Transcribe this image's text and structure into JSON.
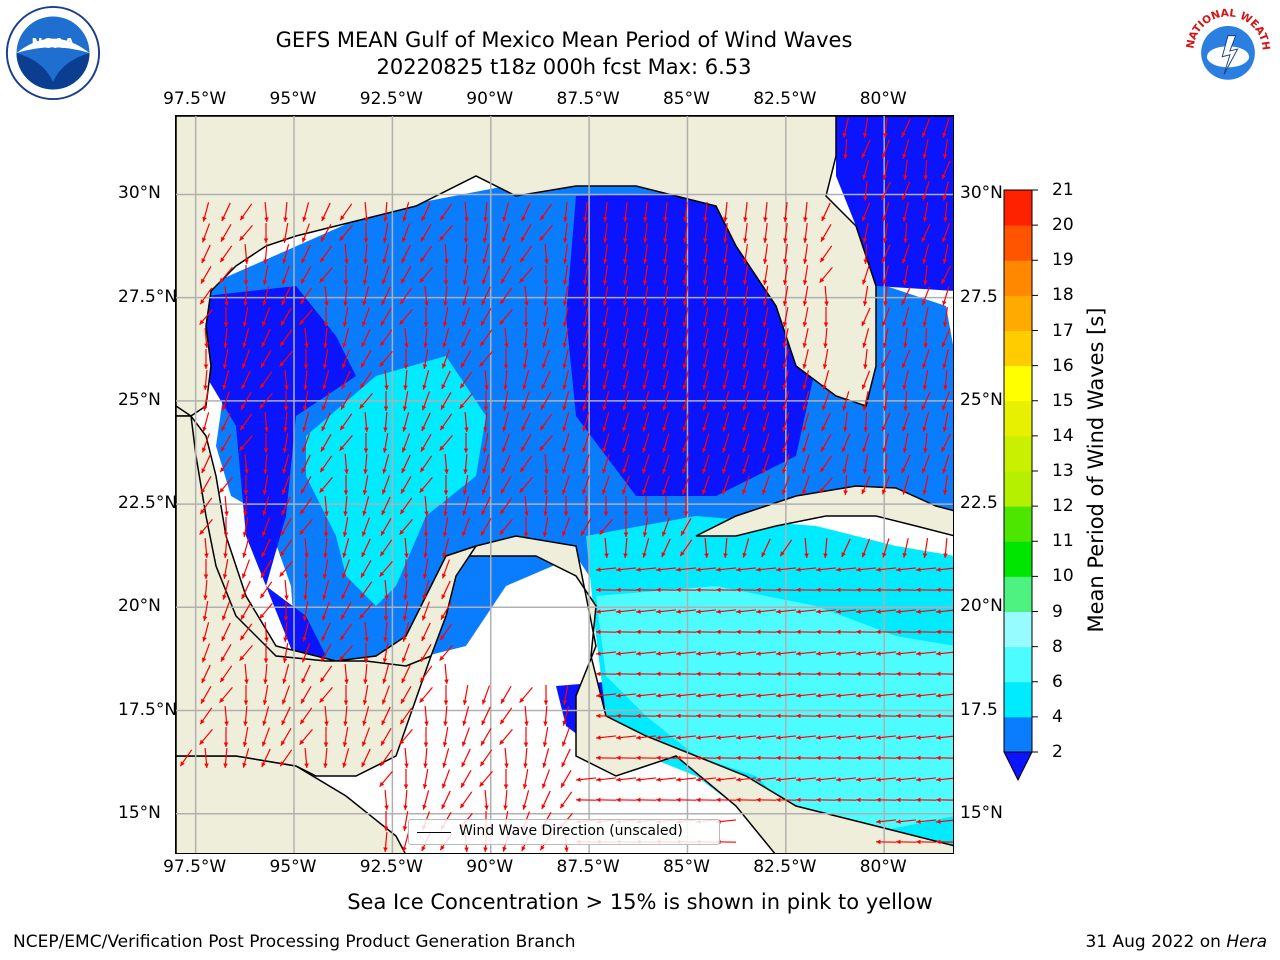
{
  "title_line1": "GEFS MEAN Gulf of Mexico Mean Period of Wind Waves",
  "title_line2": "20220825 t18z 000h fcst   Max: 6.53",
  "logos": {
    "left": "noaa-logo",
    "left_text": "NOAA",
    "right": "nws-logo",
    "right_text": "NATIONAL WEATHER SERVICE"
  },
  "map": {
    "lon_ticks": [
      "97.5°W",
      "95°W",
      "92.5°W",
      "90°W",
      "87.5°W",
      "85°W",
      "82.5°W",
      "80°W"
    ],
    "lon_values": [
      -97.5,
      -95,
      -92.5,
      -90,
      -87.5,
      -85,
      -82.5,
      -80
    ],
    "lat_ticks": [
      "30°N",
      "27.5°N",
      "25°N",
      "22.5°N",
      "20°N",
      "17.5°N",
      "15°N"
    ],
    "lat_ticks_right": [
      "30°N",
      "27.5",
      "25°N",
      "22.5",
      "20°N",
      "17.5",
      "15°N"
    ],
    "lat_values": [
      30,
      27.5,
      25,
      22.5,
      20,
      17.5,
      15
    ],
    "lon_range": [
      -98,
      -78.2
    ],
    "lat_range": [
      14,
      31.9
    ],
    "grid": true,
    "colors": {
      "land": "#eeeedb",
      "coast": "#000000",
      "grid": "#b0b0b0",
      "arrow": "#ff0000",
      "no_data": "#ffffff"
    }
  },
  "legend": {
    "label": "Wind Wave Direction (unscaled)",
    "placement": "lower-center"
  },
  "colorbar": {
    "title": "Mean Period of Wind Waves [s]",
    "levels": [
      "2",
      "4",
      "6",
      "8",
      "9",
      "10",
      "11",
      "12",
      "13",
      "14",
      "15",
      "16",
      "17",
      "18",
      "19",
      "20",
      "21"
    ],
    "colors": [
      "#0a14ff",
      "#0a7dff",
      "#00ebff",
      "#4dfcff",
      "#96fcff",
      "#4df280",
      "#00e600",
      "#4de600",
      "#b4f000",
      "#c8f000",
      "#e6f000",
      "#ffff00",
      "#ffcc00",
      "#ffaa00",
      "#ff8800",
      "#ff5500",
      "#ff2200",
      "#ff0000"
    ],
    "under_color": "#0a14ff"
  },
  "sea_ice_note": "Sea Ice Concentration > 15% is shown in pink to yellow",
  "footer": {
    "left": "NCEP/EMC/Verification Post Processing Product Generation Branch",
    "date": "31 Aug 2022 on ",
    "host": "Hera"
  }
}
